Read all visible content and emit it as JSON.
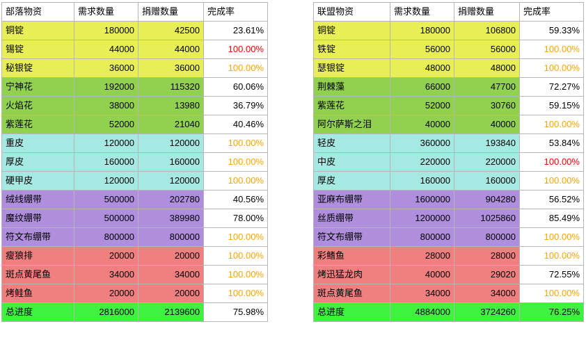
{
  "colors": {
    "metal": "#e8ee55",
    "herb": "#92d050",
    "leather": "#a6e8e2",
    "bandage": "#b08ede",
    "food": "#f08080",
    "total": "#3ff23f",
    "grid": "#b6b6b6",
    "text": "#000000",
    "rate_orange": "#ffa400",
    "rate_red": "#ff0000",
    "rate_cell_bg": "#ffffff"
  },
  "tables": [
    {
      "id": "horde-supplies-table",
      "headers": [
        "部落物资",
        "需求数量",
        "捐赠数量",
        "完成率"
      ],
      "rows": [
        {
          "name": "铜锭",
          "required": "180000",
          "donated": "42500",
          "rate": "23.61%",
          "group": "metal",
          "rate_color": "black"
        },
        {
          "name": "锡锭",
          "required": "44000",
          "donated": "44000",
          "rate": "100.00%",
          "group": "metal",
          "rate_color": "red"
        },
        {
          "name": "秘银锭",
          "required": "36000",
          "donated": "36000",
          "rate": "100.00%",
          "group": "metal",
          "rate_color": "orange"
        },
        {
          "name": "宁神花",
          "required": "192000",
          "donated": "115320",
          "rate": "60.06%",
          "group": "herb",
          "rate_color": "black"
        },
        {
          "name": "火焰花",
          "required": "38000",
          "donated": "13980",
          "rate": "36.79%",
          "group": "herb",
          "rate_color": "black"
        },
        {
          "name": "紫莲花",
          "required": "52000",
          "donated": "21040",
          "rate": "40.46%",
          "group": "herb",
          "rate_color": "black"
        },
        {
          "name": "重皮",
          "required": "120000",
          "donated": "120000",
          "rate": "100.00%",
          "group": "leather",
          "rate_color": "orange"
        },
        {
          "name": "厚皮",
          "required": "160000",
          "donated": "160000",
          "rate": "100.00%",
          "group": "leather",
          "rate_color": "orange"
        },
        {
          "name": "硬甲皮",
          "required": "120000",
          "donated": "120000",
          "rate": "100.00%",
          "group": "leather",
          "rate_color": "orange"
        },
        {
          "name": "绒线绷带",
          "required": "500000",
          "donated": "202780",
          "rate": "40.56%",
          "group": "bandage",
          "rate_color": "black"
        },
        {
          "name": "魔纹绷带",
          "required": "500000",
          "donated": "389980",
          "rate": "78.00%",
          "group": "bandage",
          "rate_color": "black"
        },
        {
          "name": "符文布绷带",
          "required": "800000",
          "donated": "800000",
          "rate": "100.00%",
          "group": "bandage",
          "rate_color": "orange"
        },
        {
          "name": "瘦狼排",
          "required": "20000",
          "donated": "20000",
          "rate": "100.00%",
          "group": "food",
          "rate_color": "orange"
        },
        {
          "name": "斑点黄尾鱼",
          "required": "34000",
          "donated": "34000",
          "rate": "100.00%",
          "group": "food",
          "rate_color": "orange"
        },
        {
          "name": "烤鲑鱼",
          "required": "20000",
          "donated": "20000",
          "rate": "100.00%",
          "group": "food",
          "rate_color": "orange"
        },
        {
          "name": "总进度",
          "required": "2816000",
          "donated": "2139600",
          "rate": "75.98%",
          "group": "total",
          "rate_color": "black",
          "rate_bg": "white"
        }
      ]
    },
    {
      "id": "alliance-supplies-table",
      "headers": [
        "联盟物资",
        "需求数量",
        "捐赠数量",
        "完成率"
      ],
      "rows": [
        {
          "name": "铜锭",
          "required": "180000",
          "donated": "106800",
          "rate": "59.33%",
          "group": "metal",
          "rate_color": "black"
        },
        {
          "name": "铁锭",
          "required": "56000",
          "donated": "56000",
          "rate": "100.00%",
          "group": "metal",
          "rate_color": "orange"
        },
        {
          "name": "瑟银锭",
          "required": "48000",
          "donated": "48000",
          "rate": "100.00%",
          "group": "metal",
          "rate_color": "orange"
        },
        {
          "name": "荆棘藻",
          "required": "66000",
          "donated": "47700",
          "rate": "72.27%",
          "group": "herb",
          "rate_color": "black"
        },
        {
          "name": "紫莲花",
          "required": "52000",
          "donated": "30760",
          "rate": "59.15%",
          "group": "herb",
          "rate_color": "black"
        },
        {
          "name": "阿尔萨斯之泪",
          "required": "40000",
          "donated": "40000",
          "rate": "100.00%",
          "group": "herb",
          "rate_color": "orange"
        },
        {
          "name": "轻皮",
          "required": "360000",
          "donated": "193840",
          "rate": "53.84%",
          "group": "leather",
          "rate_color": "black"
        },
        {
          "name": "中皮",
          "required": "220000",
          "donated": "220000",
          "rate": "100.00%",
          "group": "leather",
          "rate_color": "red"
        },
        {
          "name": "厚皮",
          "required": "160000",
          "donated": "160000",
          "rate": "100.00%",
          "group": "leather",
          "rate_color": "orange"
        },
        {
          "name": "亚麻布绷带",
          "required": "1600000",
          "donated": "904280",
          "rate": "56.52%",
          "group": "bandage",
          "rate_color": "black"
        },
        {
          "name": "丝质绷带",
          "required": "1200000",
          "donated": "1025860",
          "rate": "85.49%",
          "group": "bandage",
          "rate_color": "black"
        },
        {
          "name": "符文布绷带",
          "required": "800000",
          "donated": "800000",
          "rate": "100.00%",
          "group": "bandage",
          "rate_color": "orange"
        },
        {
          "name": "彩鳍鱼",
          "required": "28000",
          "donated": "28000",
          "rate": "100.00%",
          "group": "food",
          "rate_color": "orange"
        },
        {
          "name": "烤迅猛龙肉",
          "required": "40000",
          "donated": "29020",
          "rate": "72.55%",
          "group": "food",
          "rate_color": "black"
        },
        {
          "name": "斑点黄尾鱼",
          "required": "34000",
          "donated": "34000",
          "rate": "100.00%",
          "group": "food",
          "rate_color": "orange"
        },
        {
          "name": "总进度",
          "required": "4884000",
          "donated": "3724260",
          "rate": "76.25%",
          "group": "total",
          "rate_color": "black",
          "rate_bg": "green"
        }
      ]
    }
  ]
}
